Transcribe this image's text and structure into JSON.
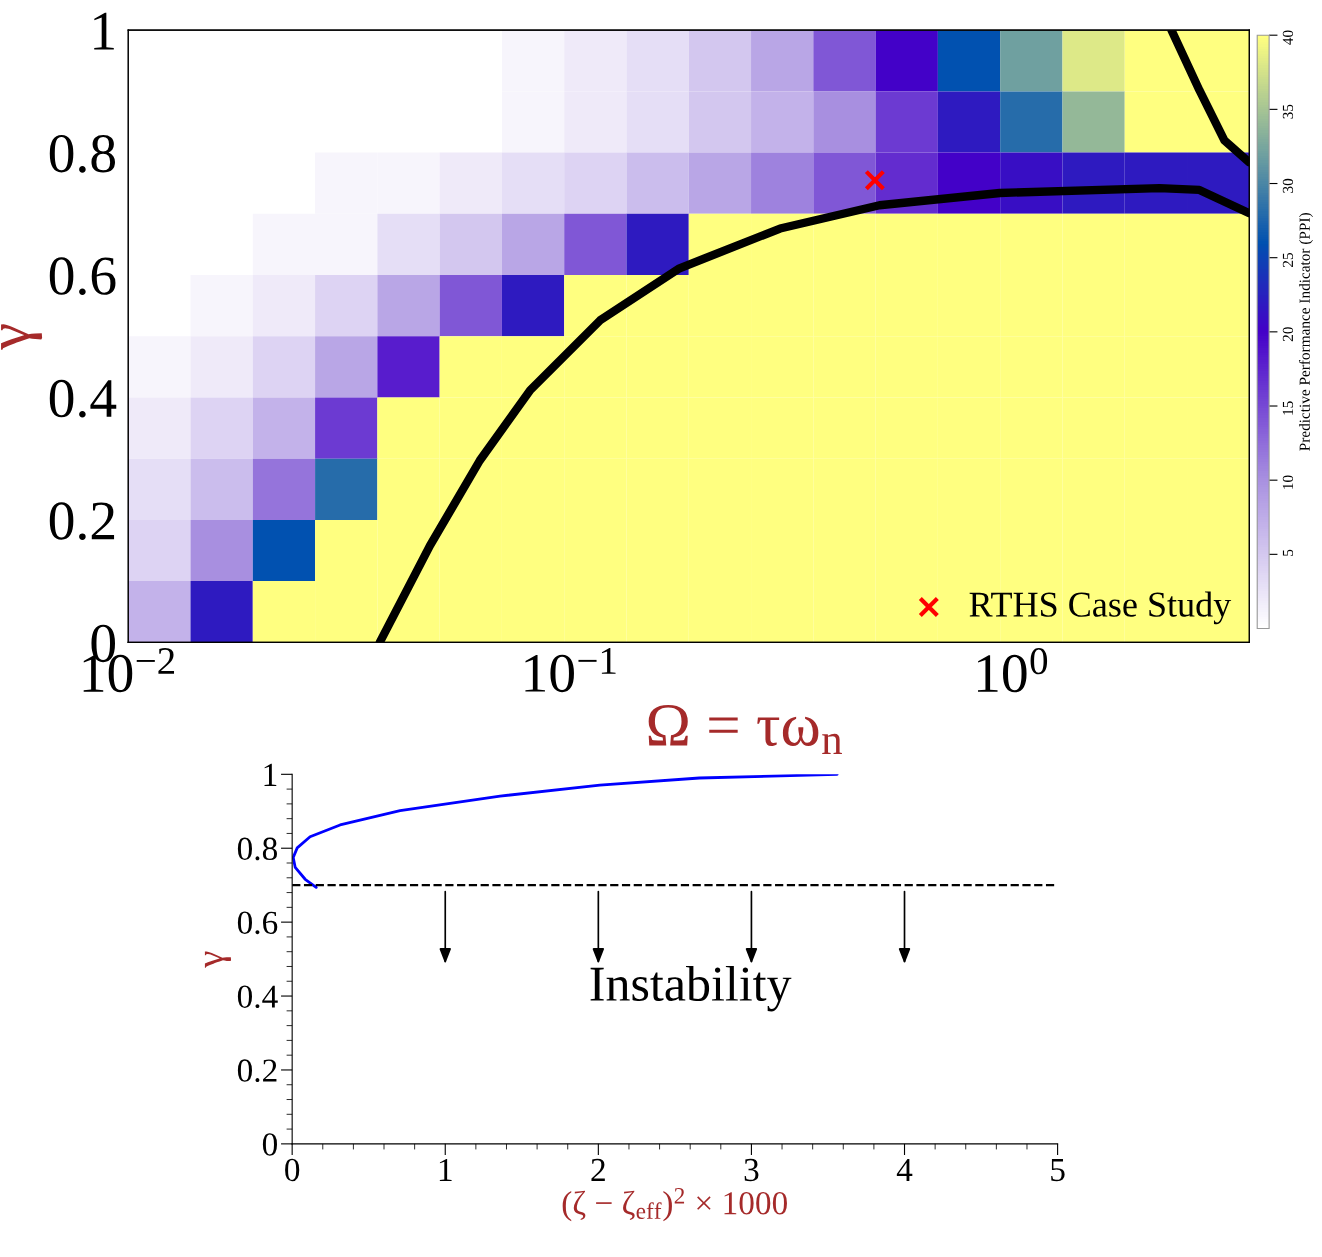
{
  "chart_data": [
    {
      "type": "heatmap",
      "clabel": "Predictive Performance Indicator (PPI)",
      "categories": [
        null,
        null,
        null,
        null,
        null,
        null,
        null,
        null,
        null,
        null,
        null,
        null,
        null,
        null,
        null,
        null,
        null,
        null
      ],
      "y_categories": [
        null,
        null,
        null,
        null,
        null,
        null,
        null,
        null,
        null,
        null
      ],
      "cells": [
        [
          0,
          0,
          0,
          0,
          0,
          0,
          1,
          2,
          3,
          5,
          8,
          14,
          20,
          26,
          32,
          38,
          40,
          40
        ],
        [
          0,
          0,
          0,
          0,
          0,
          0,
          1,
          2,
          3,
          5,
          7,
          10,
          16,
          22,
          28,
          34,
          40,
          40
        ],
        [
          0,
          0,
          0,
          1,
          1,
          2,
          3,
          4,
          6,
          8,
          11,
          14,
          17,
          20,
          21,
          22,
          22,
          22
        ],
        [
          0,
          0,
          1,
          1,
          3,
          5,
          8,
          14,
          22,
          40,
          40,
          40,
          40,
          40,
          40,
          40,
          40,
          40
        ],
        [
          0,
          1,
          2,
          4,
          8,
          14,
          22,
          40,
          40,
          40,
          40,
          40,
          40,
          40,
          40,
          40,
          40,
          40
        ],
        [
          1,
          2,
          4,
          8,
          18,
          40,
          40,
          40,
          40,
          40,
          40,
          40,
          40,
          40,
          40,
          40,
          40,
          40
        ],
        [
          2,
          4,
          7,
          16,
          40,
          40,
          40,
          40,
          40,
          40,
          40,
          40,
          40,
          40,
          40,
          40,
          40,
          40
        ],
        [
          3,
          6,
          12,
          28,
          40,
          40,
          40,
          40,
          40,
          40,
          40,
          40,
          40,
          40,
          40,
          40,
          40,
          40
        ],
        [
          4,
          10,
          26,
          40,
          40,
          40,
          40,
          40,
          40,
          40,
          40,
          40,
          40,
          40,
          40,
          40,
          40,
          40
        ],
        [
          7,
          22,
          40,
          40,
          40,
          40,
          40,
          40,
          40,
          40,
          40,
          40,
          40,
          40,
          40,
          40,
          40,
          40
        ]
      ],
      "clim": [
        0,
        40
      ],
      "cticks": [
        5,
        10,
        15,
        20,
        25,
        30,
        35,
        40
      ]
    },
    {
      "type": "line",
      "xlabel": "Ω = τω$_{n}$",
      "ylabel": "γ",
      "log": "x",
      "xlim": [
        0.01,
        3.45
      ],
      "ylim": [
        0,
        1
      ],
      "xticks": [
        {
          "value": 0.01,
          "label": "10$^{−2}$"
        },
        {
          "value": 0.1,
          "label": "10$^{−1}$"
        },
        {
          "value": 1,
          "label": "10$^{0}$"
        }
      ],
      "yticks": [
        0,
        0.2,
        0.4,
        0.6,
        0.8,
        1
      ],
      "series": [
        {
          "color": "#000000",
          "x": [
            0.0371,
            0.0482,
            0.0625,
            0.0813,
            0.117,
            0.177,
            0.299,
            0.502,
            0.94,
            2.16,
            2.66,
            3.45
          ],
          "values": [
            0,
            0.158,
            0.297,
            0.412,
            0.526,
            0.611,
            0.676,
            0.714,
            0.734,
            0.742,
            0.739,
            0.701
          ]
        },
        {
          "color": "#000000",
          "x": [
            2.3,
            2.66,
            3.03,
            3.45
          ],
          "values": [
            1.0,
            0.902,
            0.82,
            0.784
          ]
        },
        {
          "type": "scatter",
          "name": "RTHS Case Study",
          "color": "#ff0000",
          "marker": "cross",
          "x": [
            0.49
          ],
          "values": [
            0.755
          ]
        }
      ],
      "legend": "bottom right"
    },
    {
      "type": "line",
      "xlabel": "(ζ − ζ$_{eff}$)$^{2}$ × 1000",
      "ylabel": "γ",
      "xlim": [
        0,
        5
      ],
      "ylim": [
        0,
        1
      ],
      "xticks": [
        0,
        1,
        2,
        3,
        4,
        5
      ],
      "yticks": [
        0,
        0.2,
        0.4,
        0.6,
        0.8,
        1
      ],
      "series": [
        {
          "color": "#0000ff",
          "x": [
            0.157,
            0.085,
            0.02,
            0.007,
            0.033,
            0.117,
            0.313,
            0.705,
            1.358,
            2.01,
            2.66,
            3.56
          ],
          "values": [
            0.694,
            0.716,
            0.748,
            0.775,
            0.801,
            0.831,
            0.863,
            0.902,
            0.941,
            0.971,
            0.99,
            1.0
          ]
        }
      ],
      "ref_lines": [
        {
          "axis": "y",
          "value": 0.7,
          "color": "#000000",
          "line_style": "dashed"
        }
      ],
      "annotations": [
        "Instability"
      ]
    }
  ]
}
